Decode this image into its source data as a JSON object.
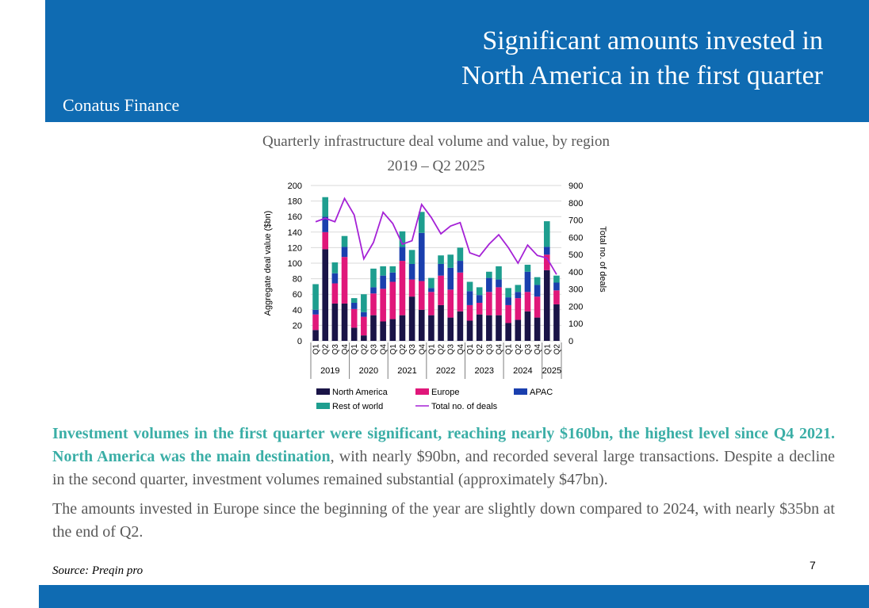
{
  "header": {
    "title_line1": "Significant amounts invested in",
    "title_line2": "North America in the first quarter",
    "brand": "Conatus Finance",
    "bg_color": "#0f6bb2"
  },
  "chart_data": {
    "type": "bar",
    "title": "Quarterly infrastructure deal volume and value, by region",
    "subtitle": "2019 – Q2 2025",
    "ylabel": "Aggregate deal value ($bn)",
    "y2label": "Total no. of deals",
    "ylim": [
      0,
      200
    ],
    "y2lim": [
      0,
      900
    ],
    "yticks": [
      0,
      20,
      40,
      60,
      80,
      100,
      120,
      140,
      160,
      180,
      200
    ],
    "y2ticks": [
      0,
      100,
      200,
      300,
      400,
      500,
      600,
      700,
      800,
      900
    ],
    "categories": [
      "Q1",
      "Q2",
      "Q3",
      "Q4",
      "Q1",
      "Q2",
      "Q3",
      "Q4",
      "Q1",
      "Q2",
      "Q3",
      "Q4",
      "Q1",
      "Q2",
      "Q3",
      "Q4",
      "Q1",
      "Q2",
      "Q3",
      "Q4",
      "Q1",
      "Q2",
      "Q3",
      "Q4",
      "Q1",
      "Q2"
    ],
    "year_groups": [
      {
        "label": "2019",
        "count": 4
      },
      {
        "label": "2020",
        "count": 4
      },
      {
        "label": "2021",
        "count": 4
      },
      {
        "label": "2022",
        "count": 4
      },
      {
        "label": "2023",
        "count": 4
      },
      {
        "label": "2024",
        "count": 4
      },
      {
        "label": "2025",
        "count": 2
      }
    ],
    "stacked": true,
    "series": [
      {
        "name": "North America",
        "color": "#1a1447",
        "values": [
          14,
          118,
          48,
          48,
          17,
          7,
          33,
          25,
          28,
          33,
          57,
          40,
          33,
          46,
          30,
          38,
          26,
          34,
          33,
          33,
          23,
          27,
          38,
          30,
          91,
          47
        ]
      },
      {
        "name": "Europe",
        "color": "#e0177a",
        "values": [
          20,
          22,
          26,
          60,
          24,
          24,
          28,
          42,
          48,
          70,
          22,
          37,
          30,
          38,
          36,
          50,
          20,
          15,
          30,
          36,
          23,
          28,
          25,
          27,
          20,
          18
        ]
      },
      {
        "name": "APAC",
        "color": "#1a3fae",
        "values": [
          6,
          20,
          13,
          13,
          8,
          6,
          8,
          17,
          12,
          18,
          20,
          62,
          5,
          15,
          28,
          15,
          18,
          10,
          18,
          10,
          10,
          8,
          26,
          15,
          10,
          10
        ]
      },
      {
        "name": "Rest of world",
        "color": "#1e9e8f",
        "values": [
          33,
          25,
          14,
          14,
          6,
          23,
          24,
          12,
          8,
          20,
          18,
          27,
          13,
          11,
          17,
          17,
          12,
          10,
          8,
          17,
          12,
          9,
          9,
          10,
          33,
          9
        ]
      }
    ],
    "line_series": {
      "name": "Total no. of deals",
      "color": "#a522d6",
      "axis": "right",
      "values": [
        690,
        710,
        690,
        825,
        730,
        475,
        570,
        745,
        680,
        560,
        580,
        790,
        715,
        620,
        665,
        685,
        510,
        490,
        560,
        615,
        540,
        450,
        555,
        495,
        480,
        385
      ]
    },
    "legend": [
      "North America",
      "Europe",
      "APAC",
      "Rest of world",
      "Total no. of deals"
    ],
    "legend_position": "bottom",
    "grid": true
  },
  "body": {
    "p1_highlight": "Investment volumes in the first quarter were significant, reaching nearly $160bn, the highest level since Q4 2021. North America was the main destination",
    "p1_rest": ", with nearly $90bn, and recorded several large transactions. Despite a decline in the second quarter, investment volumes remained substantial (approximately $47bn).",
    "p2": "The amounts invested in Europe since the beginning of the year are slightly down compared to 2024, with nearly $35bn at the end of Q2."
  },
  "source": "Source: Preqin pro",
  "page_number": "7"
}
